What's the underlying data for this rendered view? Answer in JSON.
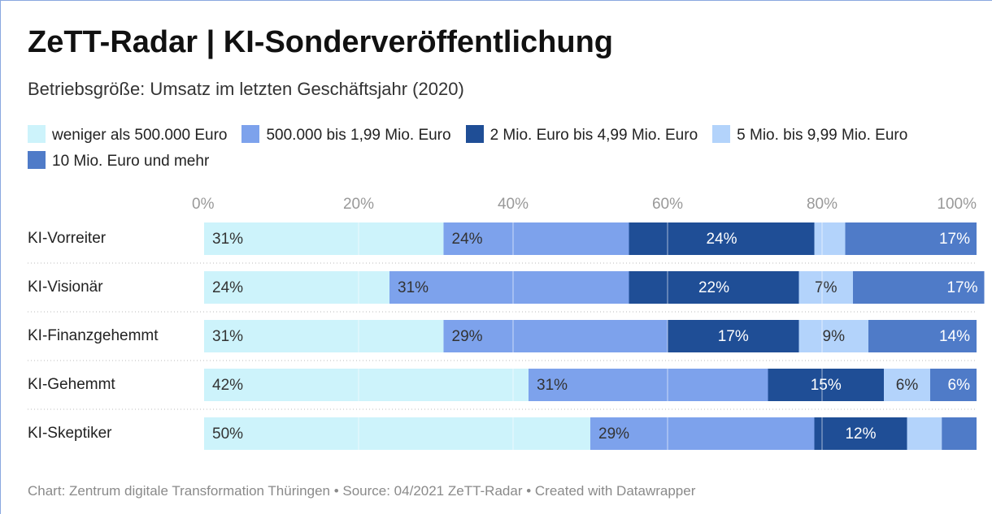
{
  "chart_data": {
    "type": "stacked_bar_horizontal",
    "title": "ZeTT-Radar | KI-Sonderveröffentlichung",
    "subtitle": "Betriebsgröße: Umsatz im letzten Geschäftsjahr (2020)",
    "source": "Chart: Zentrum digitale Transformation Thüringen • Source: 04/2021 ZeTT-Radar • Created with Datawrapper",
    "categories": [
      "KI-Vorreiter",
      "KI-Visionär",
      "KI-Finanzgehemmt",
      "KI-Gehemmt",
      "KI-Skeptiker"
    ],
    "series": [
      {
        "name": "weniger als 500.000 Euro",
        "color": "#cdf3fb",
        "values": [
          31,
          24,
          31,
          42,
          50
        ],
        "value_labels": [
          "31%",
          "24%",
          "31%",
          "42%",
          "50%"
        ]
      },
      {
        "name": "500.000 bis 1,99 Mio. Euro",
        "color": "#7da2ec",
        "values": [
          24,
          31,
          29,
          31,
          29
        ],
        "value_labels": [
          "24%",
          "31%",
          "29%",
          "31%",
          "29%"
        ]
      },
      {
        "name": "2 Mio. Euro bis 4,99 Mio. Euro",
        "color": "#1f4e96",
        "values": [
          24,
          22,
          17,
          15,
          12
        ],
        "value_labels": [
          "24%",
          "22%",
          "17%",
          "15%",
          "12%"
        ]
      },
      {
        "name": "5 Mio. bis 9,99 Mio. Euro",
        "color": "#b3d3fb",
        "values": [
          4,
          7,
          9,
          6,
          4.5
        ],
        "value_labels": [
          null,
          "7%",
          "9%",
          "6%",
          null
        ]
      },
      {
        "name": "10 Mio. Euro und mehr",
        "color": "#4f7bc8",
        "values": [
          17,
          17,
          14,
          6,
          4.5
        ],
        "value_labels": [
          "17%",
          "17%",
          "14%",
          "6%",
          null
        ]
      }
    ],
    "xlim": [
      0,
      100
    ],
    "xticks": [
      {
        "value": 0,
        "label": "0%"
      },
      {
        "value": 20,
        "label": "20%"
      },
      {
        "value": 40,
        "label": "40%"
      },
      {
        "value": 60,
        "label": "60%"
      },
      {
        "value": 80,
        "label": "80%"
      },
      {
        "value": 100,
        "label": "100%"
      }
    ],
    "grid": true
  }
}
